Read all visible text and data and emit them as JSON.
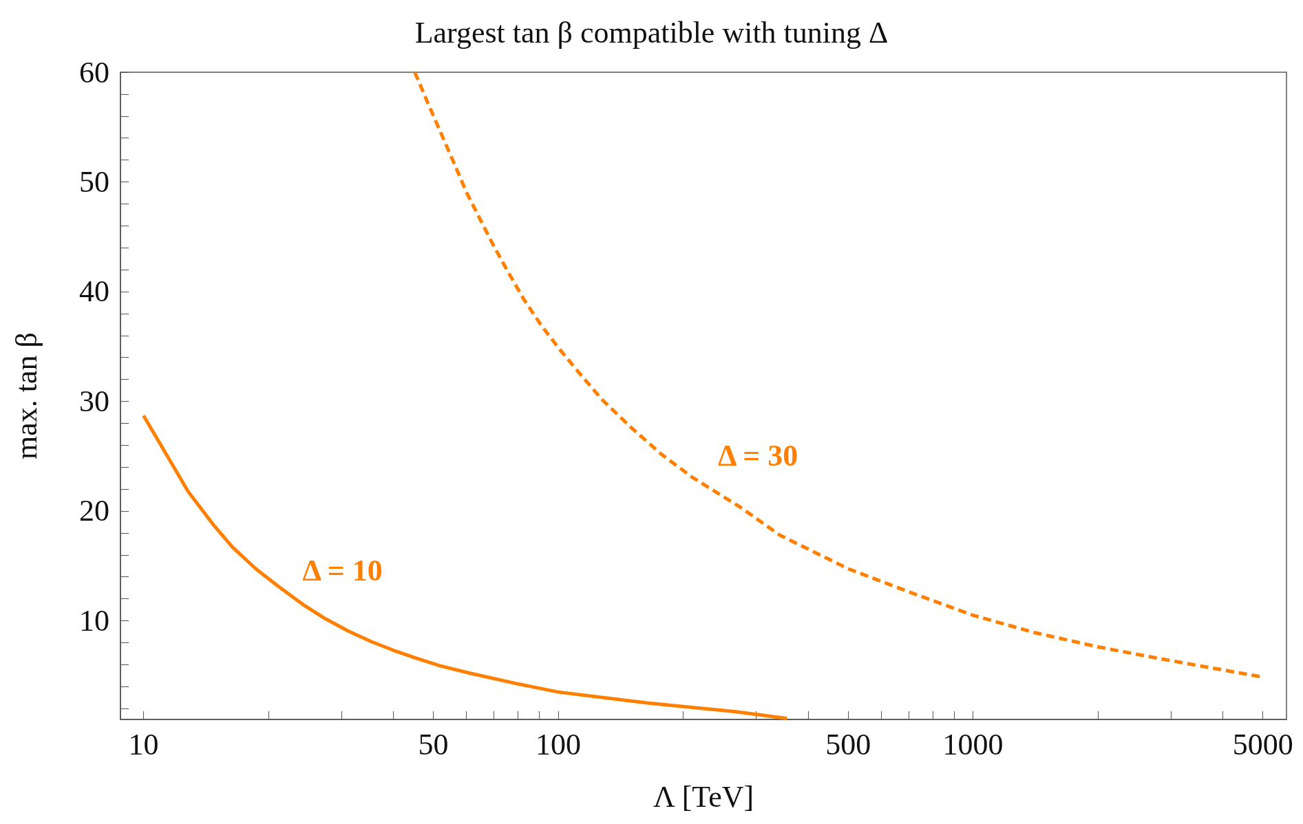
{
  "chart_data": {
    "type": "line",
    "title": "Largest tan β compatible with tuning Δ",
    "xlabel": "Λ [TeV]",
    "ylabel": "max. tan β",
    "log": "x",
    "marker": "none",
    "xlim": [
      8.8,
      5700
    ],
    "ylim": [
      1,
      60
    ],
    "xticks": [
      10,
      {
        "value": 20,
        "label": null
      },
      {
        "value": 30,
        "label": null
      },
      {
        "value": 40,
        "label": null
      },
      50,
      {
        "value": 60,
        "label": null
      },
      {
        "value": 70,
        "label": null
      },
      {
        "value": 80,
        "label": null
      },
      {
        "value": 90,
        "label": null
      },
      100,
      {
        "value": 200,
        "label": null
      },
      {
        "value": 300,
        "label": null
      },
      {
        "value": 400,
        "label": null
      },
      500,
      {
        "value": 600,
        "label": null
      },
      {
        "value": 700,
        "label": null
      },
      {
        "value": 800,
        "label": null
      },
      {
        "value": 900,
        "label": null
      },
      1000,
      {
        "value": 2000,
        "label": null
      },
      {
        "value": 3000,
        "label": null
      },
      {
        "value": 4000,
        "label": null
      },
      5000
    ],
    "yticks": [
      {
        "value": 2,
        "label": null
      },
      {
        "value": 4,
        "label": null
      },
      {
        "value": 6,
        "label": null
      },
      {
        "value": 8,
        "label": null
      },
      10,
      {
        "value": 12,
        "label": null
      },
      {
        "value": 14,
        "label": null
      },
      {
        "value": 16,
        "label": null
      },
      {
        "value": 18,
        "label": null
      },
      20,
      {
        "value": 22,
        "label": null
      },
      {
        "value": 24,
        "label": null
      },
      {
        "value": 26,
        "label": null
      },
      {
        "value": 28,
        "label": null
      },
      30,
      {
        "value": 32,
        "label": null
      },
      {
        "value": 34,
        "label": null
      },
      {
        "value": 36,
        "label": null
      },
      {
        "value": 38,
        "label": null
      },
      40,
      {
        "value": 42,
        "label": null
      },
      {
        "value": 44,
        "label": null
      },
      {
        "value": 46,
        "label": null
      },
      {
        "value": 48,
        "label": null
      },
      50,
      {
        "value": 52,
        "label": null
      },
      {
        "value": 54,
        "label": null
      },
      {
        "value": 56,
        "label": null
      },
      {
        "value": 58,
        "label": null
      },
      60
    ],
    "series": [
      {
        "name": "Δ = 10",
        "color": "#ff8000",
        "line_style": "solid",
        "x": [
          10,
          11.1,
          12.8,
          14.7,
          16.4,
          18.7,
          21.2,
          24.2,
          27.4,
          31,
          35.4,
          40.1,
          45.3,
          51.8,
          61.5,
          78.6,
          100,
          164,
          268,
          356
        ],
        "values": [
          28.7,
          25.8,
          21.8,
          18.8,
          16.7,
          14.7,
          13.1,
          11.5,
          10.2,
          9.1,
          8.1,
          7.3,
          6.6,
          5.9,
          5.2,
          4.3,
          3.5,
          2.5,
          1.7,
          1.1
        ]
      },
      {
        "name": "Δ = 30",
        "color": "#ff8000",
        "line_style": "dashed",
        "x": [
          45.1,
          48.1,
          51.8,
          55.8,
          60,
          64.6,
          69.6,
          74.9,
          82.6,
          91.1,
          100,
          114,
          128,
          149,
          177,
          210,
          276,
          342,
          503,
          716,
          1000,
          1413,
          2011,
          2864,
          4932
        ],
        "values": [
          60,
          57.5,
          54.7,
          51.9,
          49.1,
          46.7,
          44.3,
          42.1,
          39.3,
          36.9,
          34.9,
          32.3,
          30.1,
          27.7,
          25.2,
          23.1,
          20.3,
          17.8,
          14.7,
          12.5,
          10.5,
          8.9,
          7.6,
          6.5,
          4.9
        ]
      }
    ]
  }
}
